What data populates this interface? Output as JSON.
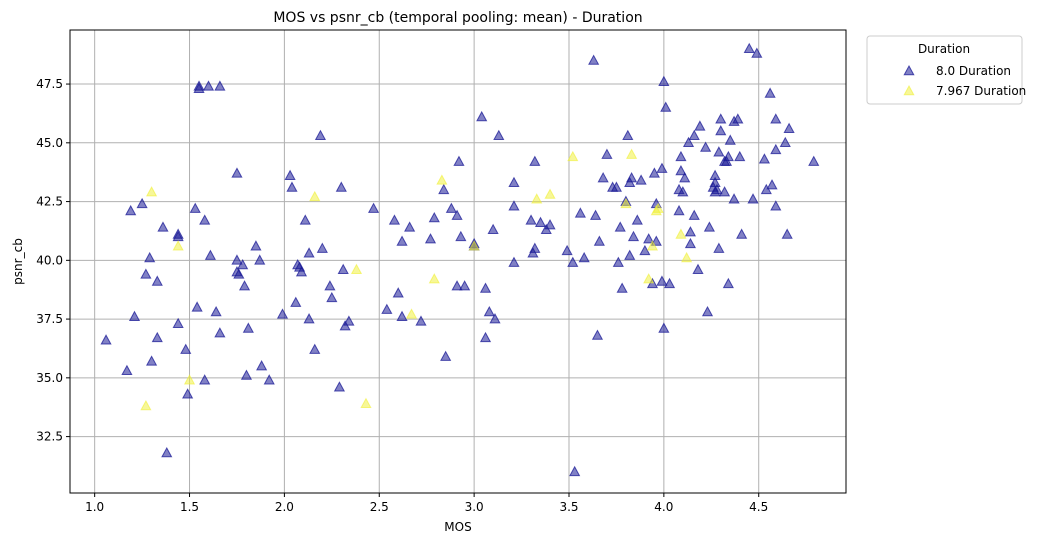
{
  "chart_data": {
    "type": "scatter",
    "title": "MOS vs psnr_cb (temporal pooling: mean) - Duration",
    "xlabel": "MOS",
    "ylabel": "psnr_cb",
    "xlim": [
      0.87,
      4.96
    ],
    "ylim": [
      30.1,
      49.8
    ],
    "xticks": [
      "1.0",
      "1.5",
      "2.0",
      "2.5",
      "3.0",
      "3.5",
      "4.0",
      "4.5"
    ],
    "yticks": [
      "32.5",
      "35.0",
      "37.5",
      "40.0",
      "42.5",
      "45.0",
      "47.5"
    ],
    "grid": true,
    "marker": "triangle",
    "legend": {
      "title": "Duration",
      "placement": "outside-top-right"
    },
    "series": [
      {
        "name": "8.0 Duration",
        "color": "#191996",
        "points": [
          [
            1.06,
            36.6
          ],
          [
            1.17,
            35.3
          ],
          [
            1.19,
            42.1
          ],
          [
            1.21,
            37.6
          ],
          [
            1.25,
            42.4
          ],
          [
            1.27,
            39.4
          ],
          [
            1.29,
            40.1
          ],
          [
            1.3,
            35.7
          ],
          [
            1.33,
            36.7
          ],
          [
            1.33,
            39.1
          ],
          [
            1.36,
            41.4
          ],
          [
            1.38,
            31.8
          ],
          [
            1.44,
            41.1
          ],
          [
            1.44,
            41.0
          ],
          [
            1.44,
            37.3
          ],
          [
            1.48,
            36.2
          ],
          [
            1.49,
            34.3
          ],
          [
            1.53,
            42.2
          ],
          [
            1.54,
            38.0
          ],
          [
            1.55,
            47.3
          ],
          [
            1.55,
            47.4
          ],
          [
            1.58,
            41.7
          ],
          [
            1.58,
            34.9
          ],
          [
            1.6,
            47.4
          ],
          [
            1.61,
            40.2
          ],
          [
            1.64,
            37.8
          ],
          [
            1.66,
            47.4
          ],
          [
            1.66,
            36.9
          ],
          [
            1.75,
            43.7
          ],
          [
            1.75,
            40.0
          ],
          [
            1.75,
            39.5
          ],
          [
            1.76,
            39.4
          ],
          [
            1.78,
            39.8
          ],
          [
            1.79,
            38.9
          ],
          [
            1.8,
            35.1
          ],
          [
            1.81,
            37.1
          ],
          [
            1.85,
            40.6
          ],
          [
            1.87,
            40.0
          ],
          [
            1.88,
            35.5
          ],
          [
            1.92,
            34.9
          ],
          [
            1.99,
            37.7
          ],
          [
            2.03,
            43.6
          ],
          [
            2.04,
            43.1
          ],
          [
            2.06,
            38.2
          ],
          [
            2.07,
            39.8
          ],
          [
            2.08,
            39.7
          ],
          [
            2.09,
            39.5
          ],
          [
            2.11,
            41.7
          ],
          [
            2.13,
            40.3
          ],
          [
            2.13,
            37.5
          ],
          [
            2.16,
            36.2
          ],
          [
            2.19,
            45.3
          ],
          [
            2.2,
            40.5
          ],
          [
            2.24,
            38.9
          ],
          [
            2.25,
            38.4
          ],
          [
            2.29,
            34.6
          ],
          [
            2.3,
            43.1
          ],
          [
            2.31,
            39.6
          ],
          [
            2.32,
            37.2
          ],
          [
            2.34,
            37.4
          ],
          [
            2.47,
            42.2
          ],
          [
            2.54,
            37.9
          ],
          [
            2.58,
            41.7
          ],
          [
            2.6,
            38.6
          ],
          [
            2.62,
            40.8
          ],
          [
            2.62,
            37.6
          ],
          [
            2.66,
            41.4
          ],
          [
            2.72,
            37.4
          ],
          [
            2.77,
            40.9
          ],
          [
            2.79,
            41.8
          ],
          [
            2.84,
            43.0
          ],
          [
            2.85,
            35.9
          ],
          [
            2.88,
            42.2
          ],
          [
            2.91,
            41.9
          ],
          [
            2.91,
            38.9
          ],
          [
            2.92,
            44.2
          ],
          [
            2.93,
            41.0
          ],
          [
            2.95,
            38.9
          ],
          [
            3.0,
            40.7
          ],
          [
            3.0,
            40.6
          ],
          [
            3.04,
            46.1
          ],
          [
            3.06,
            38.8
          ],
          [
            3.06,
            36.7
          ],
          [
            3.08,
            37.8
          ],
          [
            3.1,
            41.3
          ],
          [
            3.11,
            37.5
          ],
          [
            3.13,
            45.3
          ],
          [
            3.21,
            39.9
          ],
          [
            3.21,
            43.3
          ],
          [
            3.21,
            42.3
          ],
          [
            3.3,
            41.7
          ],
          [
            3.31,
            40.3
          ],
          [
            3.32,
            40.5
          ],
          [
            3.32,
            44.2
          ],
          [
            3.35,
            41.6
          ],
          [
            3.38,
            41.3
          ],
          [
            3.4,
            41.5
          ],
          [
            3.49,
            40.4
          ],
          [
            3.52,
            39.9
          ],
          [
            3.53,
            31.0
          ],
          [
            3.56,
            42.0
          ],
          [
            3.58,
            40.1
          ],
          [
            3.63,
            48.5
          ],
          [
            3.64,
            41.9
          ],
          [
            3.65,
            36.8
          ],
          [
            3.66,
            40.8
          ],
          [
            3.68,
            43.5
          ],
          [
            3.7,
            44.5
          ],
          [
            3.73,
            43.1
          ],
          [
            3.75,
            43.1
          ],
          [
            3.76,
            39.9
          ],
          [
            3.77,
            41.4
          ],
          [
            3.78,
            38.8
          ],
          [
            3.8,
            42.5
          ],
          [
            3.81,
            45.3
          ],
          [
            3.82,
            43.3
          ],
          [
            3.82,
            40.2
          ],
          [
            3.83,
            43.5
          ],
          [
            3.84,
            41.0
          ],
          [
            3.86,
            41.7
          ],
          [
            3.88,
            43.4
          ],
          [
            3.9,
            40.4
          ],
          [
            3.92,
            40.9
          ],
          [
            3.94,
            39.0
          ],
          [
            3.95,
            43.7
          ],
          [
            3.96,
            42.4
          ],
          [
            3.96,
            40.8
          ],
          [
            3.99,
            43.9
          ],
          [
            3.99,
            39.1
          ],
          [
            4.0,
            47.6
          ],
          [
            4.0,
            37.1
          ],
          [
            4.01,
            46.5
          ],
          [
            4.03,
            39.0
          ],
          [
            4.08,
            43.0
          ],
          [
            4.08,
            42.1
          ],
          [
            4.09,
            44.4
          ],
          [
            4.09,
            43.8
          ],
          [
            4.1,
            42.9
          ],
          [
            4.11,
            43.5
          ],
          [
            4.13,
            45.0
          ],
          [
            4.14,
            41.2
          ],
          [
            4.14,
            40.7
          ],
          [
            4.16,
            45.3
          ],
          [
            4.16,
            41.9
          ],
          [
            4.18,
            39.6
          ],
          [
            4.19,
            45.7
          ],
          [
            4.22,
            44.8
          ],
          [
            4.23,
            37.8
          ],
          [
            4.24,
            41.4
          ],
          [
            4.26,
            43.1
          ],
          [
            4.27,
            43.6
          ],
          [
            4.27,
            43.3
          ],
          [
            4.27,
            42.9
          ],
          [
            4.28,
            43.0
          ],
          [
            4.29,
            40.5
          ],
          [
            4.29,
            44.6
          ],
          [
            4.3,
            45.5
          ],
          [
            4.3,
            46.0
          ],
          [
            4.32,
            42.9
          ],
          [
            4.32,
            44.2
          ],
          [
            4.33,
            44.2
          ],
          [
            4.34,
            44.4
          ],
          [
            4.34,
            39.0
          ],
          [
            4.35,
            45.1
          ],
          [
            4.37,
            45.9
          ],
          [
            4.37,
            42.6
          ],
          [
            4.39,
            46.0
          ],
          [
            4.4,
            44.4
          ],
          [
            4.41,
            41.1
          ],
          [
            4.45,
            49.0
          ],
          [
            4.47,
            42.6
          ],
          [
            4.49,
            48.8
          ],
          [
            4.53,
            44.3
          ],
          [
            4.54,
            43.0
          ],
          [
            4.56,
            47.1
          ],
          [
            4.57,
            43.2
          ],
          [
            4.59,
            46.0
          ],
          [
            4.59,
            44.7
          ],
          [
            4.59,
            42.3
          ],
          [
            4.64,
            45.0
          ],
          [
            4.65,
            41.1
          ],
          [
            4.66,
            45.6
          ],
          [
            4.79,
            44.2
          ]
        ]
      },
      {
        "name": "7.967 Duration",
        "color": "#f0f032",
        "points": [
          [
            1.27,
            33.8
          ],
          [
            1.3,
            42.9
          ],
          [
            1.44,
            40.6
          ],
          [
            1.5,
            34.9
          ],
          [
            2.16,
            42.7
          ],
          [
            2.38,
            39.6
          ],
          [
            2.43,
            33.9
          ],
          [
            2.67,
            37.7
          ],
          [
            2.79,
            39.2
          ],
          [
            2.83,
            43.4
          ],
          [
            3.0,
            40.6
          ],
          [
            3.33,
            42.6
          ],
          [
            3.4,
            42.8
          ],
          [
            3.52,
            44.4
          ],
          [
            3.8,
            42.4
          ],
          [
            3.83,
            44.5
          ],
          [
            3.92,
            39.2
          ],
          [
            3.94,
            40.6
          ],
          [
            3.96,
            42.1
          ],
          [
            3.97,
            42.2
          ],
          [
            4.09,
            41.1
          ],
          [
            4.12,
            40.1
          ]
        ]
      }
    ]
  }
}
